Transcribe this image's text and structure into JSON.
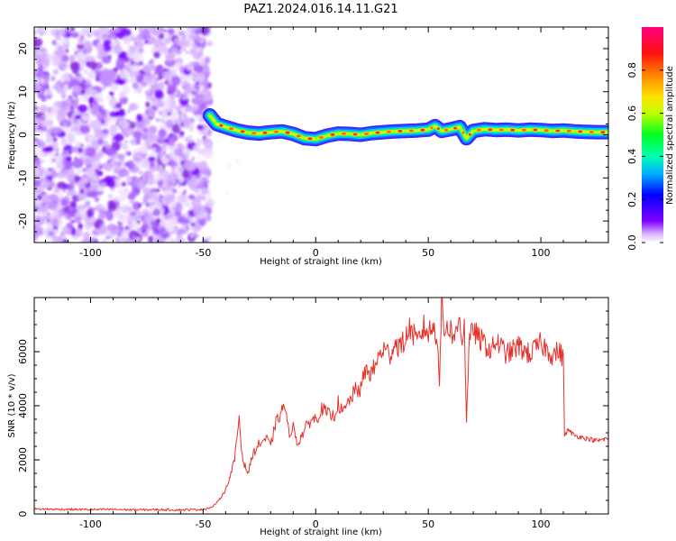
{
  "title": "PAZ1.2024.016.14.11.G21",
  "chart_data": [
    {
      "type": "heatmap",
      "title": "",
      "xlabel": "Height of straight line (km)",
      "ylabel": "Frequency (Hz)",
      "xlim": [
        -125,
        130
      ],
      "ylim": [
        -25,
        25
      ],
      "xticks": [
        -100,
        -50,
        0,
        50,
        100
      ],
      "yticks": [
        -20,
        -10,
        0,
        10,
        20
      ],
      "noise_region_x": [
        -125,
        -47
      ],
      "signal_track": {
        "x": [
          -47,
          -44,
          -40,
          -35,
          -30,
          -25,
          -20,
          -15,
          -10,
          -5,
          0,
          5,
          10,
          15,
          20,
          25,
          30,
          35,
          40,
          45,
          50,
          53,
          56,
          60,
          64,
          67,
          70,
          75,
          80,
          85,
          90,
          95,
          100,
          105,
          110,
          115,
          120,
          125,
          130
        ],
        "freq": [
          4.5,
          2.5,
          1.8,
          1.0,
          0.5,
          0.3,
          0.6,
          0.8,
          0.2,
          -0.8,
          -1.0,
          -0.2,
          0.3,
          0.2,
          0.0,
          0.4,
          0.6,
          0.8,
          0.9,
          1.0,
          1.2,
          2.0,
          0.9,
          1.3,
          1.8,
          -0.8,
          0.9,
          1.3,
          1.1,
          1.2,
          1.0,
          1.2,
          1.1,
          0.9,
          1.0,
          0.8,
          0.7,
          0.6,
          0.6
        ]
      },
      "colorbar": {
        "label": "Normalized spectral amplitude",
        "range": [
          0.0,
          1.0
        ],
        "ticks": [
          "0.0",
          "0.2",
          "0.4",
          "0.6",
          "0.8"
        ],
        "colormap": "gist_rainbow_r (violet → blue → cyan → green → yellow → orange → red → pink)"
      }
    },
    {
      "type": "line",
      "title": "",
      "xlabel": "Height of straight line (km)",
      "ylabel": "SNR (10 * v/v)",
      "xlim": [
        -125,
        130
      ],
      "ylim": [
        0,
        8000
      ],
      "xticks": [
        -100,
        -50,
        0,
        50,
        100
      ],
      "yticks": [
        0,
        2000,
        4000,
        6000
      ],
      "color": "#e8302a",
      "series": [
        {
          "x": [
            -125,
            -110,
            -100,
            -90,
            -80,
            -70,
            -60,
            -50,
            -46,
            -43,
            -40,
            -38,
            -36,
            -34,
            -33,
            -32,
            -30,
            -28,
            -25,
            -22,
            -20,
            -18,
            -15,
            -14,
            -12,
            -10,
            -8,
            -5,
            -2,
            0,
            3,
            5,
            8,
            10,
            12,
            15,
            18,
            20,
            22,
            25,
            28,
            30,
            33,
            35,
            38,
            40,
            42,
            45,
            48,
            50,
            52,
            54,
            55,
            56,
            57,
            58,
            60,
            62,
            64,
            65,
            66,
            67,
            68,
            70,
            72,
            75,
            78,
            80,
            85,
            90,
            95,
            100,
            105,
            108,
            110,
            110.5,
            112,
            115,
            120,
            125,
            130
          ],
          "y": [
            180,
            170,
            160,
            170,
            150,
            160,
            150,
            170,
            250,
            500,
            900,
            1400,
            2000,
            3600,
            2400,
            1900,
            1500,
            2200,
            2600,
            2800,
            2500,
            3300,
            3800,
            4100,
            3000,
            3200,
            2600,
            3100,
            3500,
            3500,
            3900,
            3700,
            3600,
            4100,
            3700,
            4200,
            4600,
            4600,
            5300,
            5200,
            5800,
            6100,
            5900,
            6300,
            6200,
            6500,
            6900,
            6300,
            6900,
            6700,
            6900,
            6600,
            5000,
            7900,
            6700,
            7000,
            6800,
            6500,
            7300,
            6400,
            7100,
            3300,
            6200,
            6900,
            6500,
            6300,
            6000,
            6400,
            5900,
            6200,
            5900,
            6300,
            5900,
            6000,
            5800,
            2900,
            3100,
            2900,
            2800,
            2700,
            2800
          ]
        }
      ]
    }
  ]
}
